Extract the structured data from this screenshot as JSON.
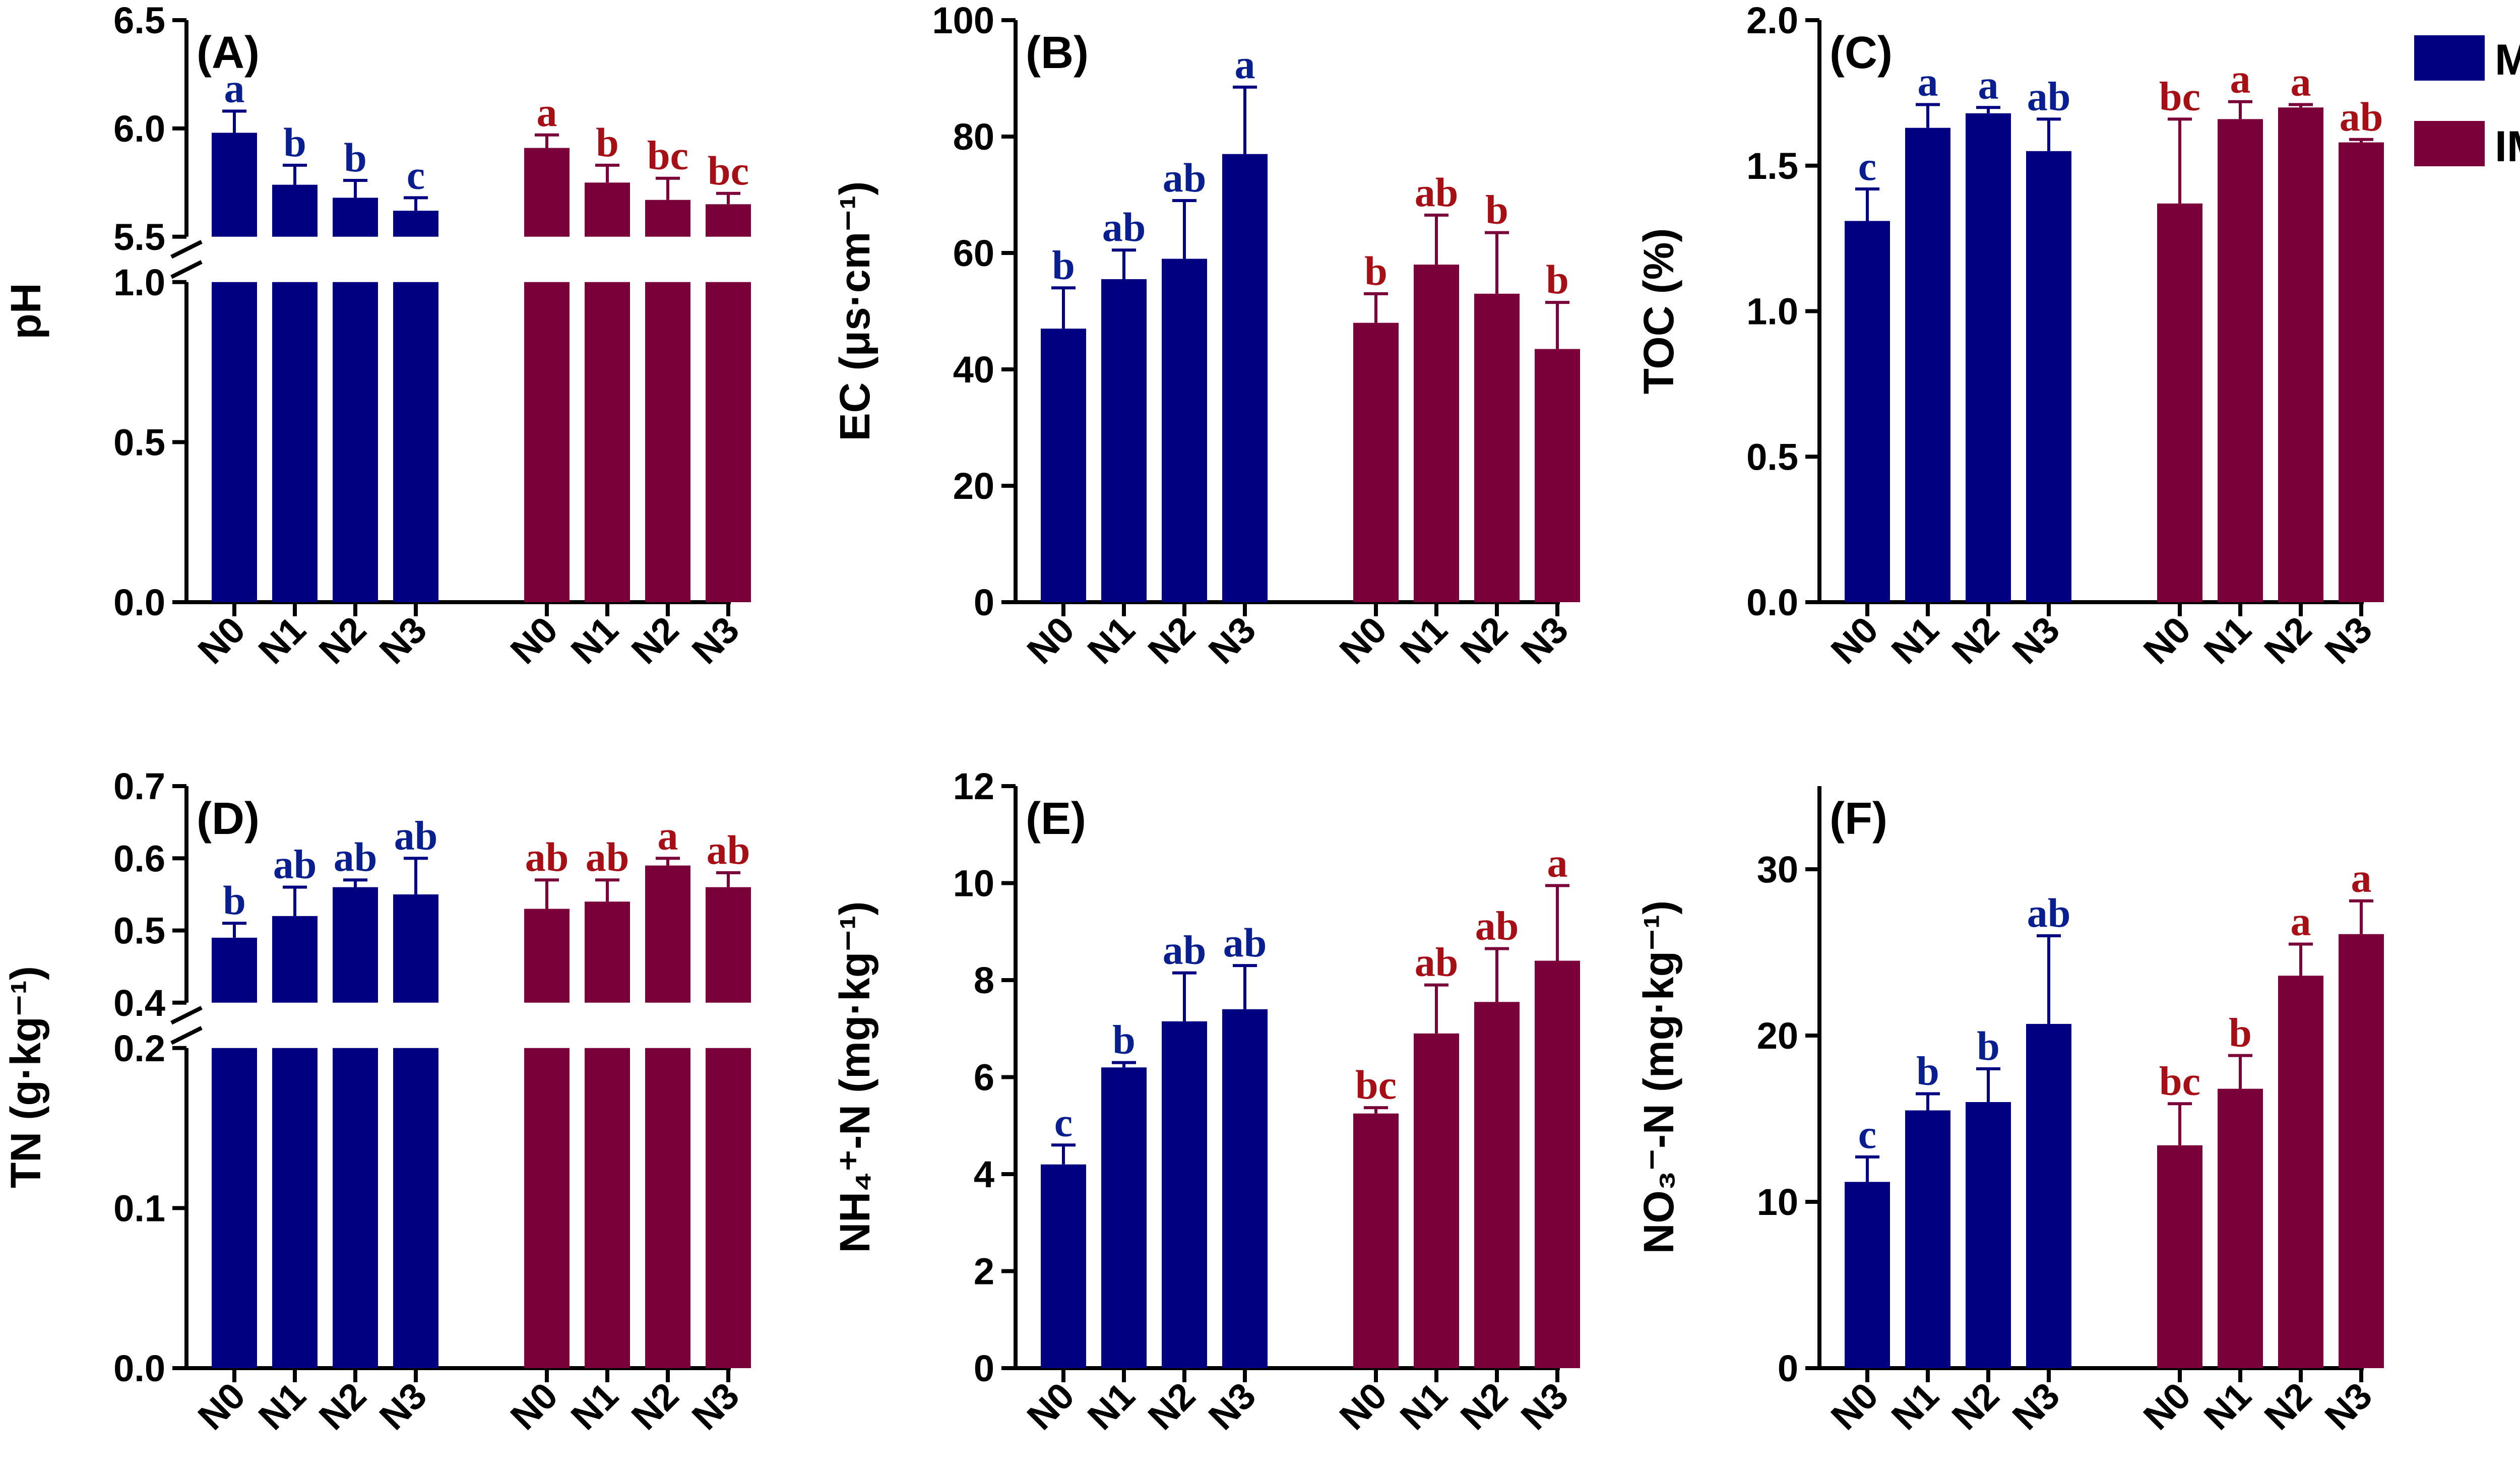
{
  "legend": [
    {
      "name": "MM",
      "color": "#000080"
    },
    {
      "name": "IM",
      "color": "#7a0039"
    }
  ],
  "colors": {
    "mm_bar": "#000080",
    "im_bar": "#7a0039",
    "mm_letter": "#0a1f8f",
    "im_letter": "#a50f15"
  },
  "chart_data": [
    {
      "id": "A",
      "panel_label": "(A)",
      "type": "bar",
      "ylabel": "pH",
      "ylim": [
        0,
        6.5
      ],
      "axis_break": {
        "from": 1.0,
        "to": 5.5
      },
      "yticks": [
        "0.0",
        "0.5",
        "1.0",
        "5.5",
        "6.0",
        "6.5"
      ],
      "categories": [
        "N0",
        "N1",
        "N2",
        "N3"
      ],
      "series": [
        {
          "name": "MM",
          "values": [
            5.98,
            5.74,
            5.68,
            5.62
          ],
          "errors": [
            0.1,
            0.09,
            0.08,
            0.06
          ],
          "letters": [
            "a",
            "b",
            "b",
            "c"
          ]
        },
        {
          "name": "IM",
          "values": [
            5.91,
            5.75,
            5.67,
            5.65
          ],
          "errors": [
            0.06,
            0.08,
            0.1,
            0.05
          ],
          "letters": [
            "a",
            "b",
            "bc",
            "bc"
          ]
        }
      ]
    },
    {
      "id": "B",
      "panel_label": "(B)",
      "type": "bar",
      "ylabel": "EC (μs·cm⁻¹)",
      "ylim": [
        0,
        100
      ],
      "yticks": [
        "0",
        "20",
        "40",
        "60",
        "80",
        "100"
      ],
      "categories": [
        "N0",
        "N1",
        "N2",
        "N3"
      ],
      "series": [
        {
          "name": "MM",
          "values": [
            47,
            55.5,
            59,
            77
          ],
          "errors": [
            7,
            5,
            10,
            11.5
          ],
          "letters": [
            "b",
            "ab",
            "ab",
            "a"
          ]
        },
        {
          "name": "IM",
          "values": [
            48,
            58,
            53,
            43.5
          ],
          "errors": [
            5,
            8.5,
            10.5,
            8
          ],
          "letters": [
            "b",
            "ab",
            "b",
            "b"
          ]
        }
      ]
    },
    {
      "id": "C",
      "panel_label": "(C)",
      "type": "bar",
      "ylabel": "TOC (%)",
      "ylim": [
        0,
        2.0
      ],
      "yticks": [
        "0.0",
        "0.5",
        "1.0",
        "1.5",
        "2.0"
      ],
      "categories": [
        "N0",
        "N1",
        "N2",
        "N3"
      ],
      "series": [
        {
          "name": "MM",
          "values": [
            1.31,
            1.63,
            1.68,
            1.55
          ],
          "errors": [
            0.11,
            0.08,
            0.02,
            0.11
          ],
          "letters": [
            "c",
            "a",
            "a",
            "ab"
          ]
        },
        {
          "name": "IM",
          "values": [
            1.37,
            1.66,
            1.7,
            1.58
          ],
          "errors": [
            0.29,
            0.06,
            0.01,
            0.01
          ],
          "letters": [
            "bc",
            "a",
            "a",
            "ab"
          ]
        }
      ]
    },
    {
      "id": "D",
      "panel_label": "(D)",
      "type": "bar",
      "ylabel": "TN (g·kg⁻¹)",
      "ylim": [
        0,
        0.7
      ],
      "axis_break": {
        "from": 0.2,
        "to": 0.4
      },
      "yticks": [
        "0.0",
        "0.1",
        "0.2",
        "0.4",
        "0.5",
        "0.6",
        "0.7"
      ],
      "categories": [
        "N0",
        "N1",
        "N2",
        "N3"
      ],
      "series": [
        {
          "name": "MM",
          "values": [
            0.49,
            0.52,
            0.56,
            0.55
          ],
          "errors": [
            0.02,
            0.04,
            0.01,
            0.05
          ],
          "letters": [
            "b",
            "ab",
            "ab",
            "ab"
          ]
        },
        {
          "name": "IM",
          "values": [
            0.53,
            0.54,
            0.59,
            0.56
          ],
          "errors": [
            0.04,
            0.03,
            0.01,
            0.02
          ],
          "letters": [
            "ab",
            "ab",
            "a",
            "ab"
          ]
        }
      ]
    },
    {
      "id": "E",
      "panel_label": "(E)",
      "type": "bar",
      "ylabel": "NH₄⁺-N (mg·kg⁻¹)",
      "ylim": [
        0,
        12
      ],
      "yticks": [
        "0",
        "2",
        "4",
        "6",
        "8",
        "10",
        "12"
      ],
      "categories": [
        "N0",
        "N1",
        "N2",
        "N3"
      ],
      "series": [
        {
          "name": "MM",
          "values": [
            4.2,
            6.2,
            7.15,
            7.4
          ],
          "errors": [
            0.4,
            0.1,
            1.0,
            0.9
          ],
          "letters": [
            "c",
            "b",
            "ab",
            "ab"
          ]
        },
        {
          "name": "IM",
          "values": [
            5.25,
            6.9,
            7.55,
            8.4
          ],
          "errors": [
            0.12,
            1.0,
            1.1,
            1.55
          ],
          "letters": [
            "bc",
            "ab",
            "ab",
            "a"
          ]
        }
      ]
    },
    {
      "id": "F",
      "panel_label": "(F)",
      "type": "bar",
      "ylabel": "NO₃⁻-N (mg·kg⁻¹)",
      "ylim": [
        0,
        35
      ],
      "yticks": [
        "0",
        "10",
        "20",
        "30"
      ],
      "categories": [
        "N0",
        "N1",
        "N2",
        "N3"
      ],
      "series": [
        {
          "name": "MM",
          "values": [
            11.2,
            15.5,
            16.0,
            20.7
          ],
          "errors": [
            1.5,
            1.0,
            2.0,
            5.3
          ],
          "letters": [
            "c",
            "b",
            "b",
            "ab"
          ]
        },
        {
          "name": "IM",
          "values": [
            13.4,
            16.8,
            23.6,
            26.1
          ],
          "errors": [
            2.5,
            2.0,
            1.9,
            2.0
          ],
          "letters": [
            "bc",
            "b",
            "a",
            "a"
          ]
        }
      ]
    }
  ]
}
